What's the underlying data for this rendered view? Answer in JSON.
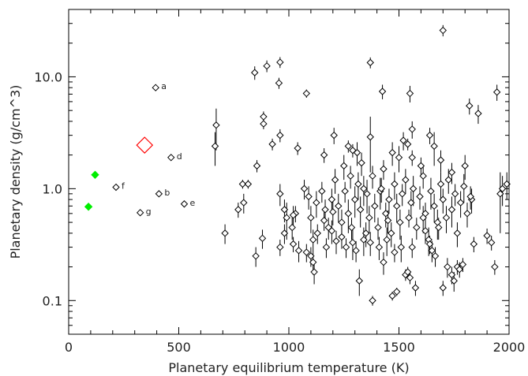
{
  "chart_data": {
    "type": "scatter",
    "xlabel": "Planetary equilibrium temperature (K)",
    "ylabel": "Planetary density (g/cm^3)",
    "xlim": [
      0,
      2000
    ],
    "ylim": [
      0.05,
      40
    ],
    "y_scale": "log",
    "x_ticks": [
      0,
      500,
      1000,
      1500,
      2000
    ],
    "x_tick_labels": [
      "0",
      "500",
      "1000",
      "1500",
      "2000"
    ],
    "y_ticks": [
      0.1,
      1.0,
      10.0
    ],
    "y_tick_labels": [
      "0.1",
      "1.0",
      "10.0"
    ],
    "grid": false,
    "legend": "none",
    "colors": {
      "known": "#000000",
      "highlight": "#ff0000",
      "green": "#00ee00"
    },
    "series": [
      {
        "marker": "open-diamond",
        "color": "#000000",
        "points": [
          [
            1700,
            26,
            3
          ],
          [
            960,
            13.5,
            1.5
          ],
          [
            900,
            12.5,
            1.5
          ],
          [
            955,
            8.8,
            1
          ],
          [
            845,
            10.9,
            1.5
          ],
          [
            1370,
            13.4,
            1.5
          ],
          [
            1945,
            7.3,
            1.2
          ],
          [
            1550,
            7.1,
            1.2
          ],
          [
            1425,
            7.4,
            1.1
          ],
          [
            1080,
            7.1,
            0.6
          ],
          [
            1820,
            5.5,
            0.9
          ],
          [
            1860,
            4.7,
            0.9
          ],
          [
            885,
            4.4,
            0.5
          ],
          [
            885,
            3.8,
            0.4
          ],
          [
            960,
            3.0,
            0.4
          ],
          [
            1040,
            2.3,
            0.3
          ],
          [
            925,
            2.5,
            0.3
          ],
          [
            670,
            3.7,
            1.5
          ],
          [
            665,
            2.4,
            0.8
          ],
          [
            855,
            1.6,
            0.2
          ],
          [
            1160,
            2.0,
            0.3
          ],
          [
            1290,
            2.2,
            0.3
          ],
          [
            1270,
            2.4,
            0.3
          ],
          [
            1205,
            3.0,
            0.5
          ],
          [
            1370,
            2.9,
            1.5
          ],
          [
            1560,
            3.4,
            0.6
          ],
          [
            1540,
            2.5,
            0.3
          ],
          [
            1520,
            2.7,
            0.5
          ],
          [
            1660,
            2.4,
            0.8
          ],
          [
            1640,
            3.0,
            0.5
          ],
          [
            1310,
            2.1,
            0.5
          ],
          [
            1470,
            2.1,
            0.5
          ],
          [
            1500,
            1.9,
            0.5
          ],
          [
            1560,
            1.9,
            0.3
          ],
          [
            1600,
            1.6,
            0.3
          ],
          [
            1690,
            1.8,
            0.4
          ],
          [
            1740,
            1.4,
            0.3
          ],
          [
            1800,
            1.6,
            0.4
          ],
          [
            1830,
            0.8,
            0.2
          ],
          [
            1970,
            1.0,
            0.3
          ],
          [
            1990,
            1.1,
            0.3
          ],
          [
            1960,
            0.9,
            0.5
          ],
          [
            790,
            1.1,
            0.1
          ],
          [
            815,
            1.1,
            0.1
          ],
          [
            795,
            0.75,
            0.15
          ],
          [
            770,
            0.65,
            0.1
          ],
          [
            960,
            0.9,
            0.2
          ],
          [
            980,
            0.65,
            0.15
          ],
          [
            990,
            0.55,
            0.2
          ],
          [
            1015,
            0.45,
            0.1
          ],
          [
            1030,
            0.6,
            0.1
          ],
          [
            1070,
            1.0,
            0.2
          ],
          [
            1090,
            0.85,
            0.2
          ],
          [
            1100,
            0.55,
            0.15
          ],
          [
            1110,
            0.35,
            0.08
          ],
          [
            1125,
            0.75,
            0.2
          ],
          [
            1150,
            0.95,
            0.2
          ],
          [
            1165,
            0.65,
            0.15
          ],
          [
            1180,
            0.45,
            0.1
          ],
          [
            1195,
            0.8,
            0.2
          ],
          [
            1210,
            1.2,
            0.3
          ],
          [
            1225,
            0.7,
            0.2
          ],
          [
            1240,
            0.5,
            0.15
          ],
          [
            1255,
            0.95,
            0.2
          ],
          [
            1270,
            0.6,
            0.2
          ],
          [
            1285,
            0.45,
            0.1
          ],
          [
            1300,
            0.8,
            0.25
          ],
          [
            1315,
            1.1,
            0.3
          ],
          [
            1325,
            0.65,
            0.2
          ],
          [
            1340,
            0.35,
            0.1
          ],
          [
            1355,
            0.9,
            0.3
          ],
          [
            1365,
            0.55,
            0.15
          ],
          [
            1380,
            1.3,
            0.3
          ],
          [
            1390,
            0.7,
            0.2
          ],
          [
            1405,
            0.45,
            0.1
          ],
          [
            1415,
            0.95,
            0.3
          ],
          [
            1430,
            1.5,
            0.3
          ],
          [
            1440,
            0.6,
            0.15
          ],
          [
            1455,
            0.8,
            0.2
          ],
          [
            1465,
            0.4,
            0.1
          ],
          [
            1480,
            1.1,
            0.3
          ],
          [
            1490,
            0.7,
            0.2
          ],
          [
            1505,
            0.5,
            0.15
          ],
          [
            1515,
            0.9,
            0.2
          ],
          [
            1530,
            1.2,
            0.3
          ],
          [
            1545,
            0.55,
            0.1
          ],
          [
            1555,
            0.75,
            0.2
          ],
          [
            1565,
            1.0,
            0.3
          ],
          [
            1580,
            0.45,
            0.1
          ],
          [
            1595,
            0.85,
            0.2
          ],
          [
            1610,
            1.3,
            0.3
          ],
          [
            1620,
            0.6,
            0.15
          ],
          [
            1635,
            0.35,
            0.1
          ],
          [
            1645,
            0.95,
            0.3
          ],
          [
            1660,
            0.7,
            0.2
          ],
          [
            1675,
            0.5,
            0.15
          ],
          [
            1690,
            1.1,
            0.3
          ],
          [
            1700,
            0.8,
            0.2
          ],
          [
            1715,
            0.55,
            0.15
          ],
          [
            1725,
            1.2,
            0.3
          ],
          [
            1740,
            0.65,
            0.2
          ],
          [
            1755,
            0.9,
            0.2
          ],
          [
            1765,
            0.4,
            0.1
          ],
          [
            1780,
            0.75,
            0.2
          ],
          [
            1795,
            1.05,
            0.3
          ],
          [
            1810,
            0.6,
            0.15
          ],
          [
            1825,
            0.85,
            0.2
          ],
          [
            1840,
            0.32,
            0.05
          ],
          [
            1900,
            0.38,
            0.06
          ],
          [
            1920,
            0.33,
            0.05
          ],
          [
            1935,
            0.2,
            0.03
          ],
          [
            710,
            0.4,
            0.08
          ],
          [
            850,
            0.25,
            0.05
          ],
          [
            880,
            0.36,
            0.07
          ],
          [
            960,
            0.3,
            0.05
          ],
          [
            980,
            0.4,
            0.08
          ],
          [
            1020,
            0.32,
            0.05
          ],
          [
            1045,
            0.28,
            0.06
          ],
          [
            1080,
            0.27,
            0.05
          ],
          [
            1100,
            0.25,
            0.05
          ],
          [
            1110,
            0.22,
            0.05
          ],
          [
            1115,
            0.18,
            0.04
          ],
          [
            1130,
            0.4,
            0.08
          ],
          [
            1170,
            0.3,
            0.06
          ],
          [
            1195,
            0.42,
            0.1
          ],
          [
            1215,
            0.34,
            0.08
          ],
          [
            1240,
            0.37,
            0.08
          ],
          [
            1260,
            0.3,
            0.06
          ],
          [
            1290,
            0.33,
            0.1
          ],
          [
            1305,
            0.28,
            0.06
          ],
          [
            1320,
            0.15,
            0.04
          ],
          [
            1350,
            0.4,
            0.1
          ],
          [
            1370,
            0.33,
            0.08
          ],
          [
            1410,
            0.3,
            0.07
          ],
          [
            1430,
            0.22,
            0.05
          ],
          [
            1445,
            0.35,
            0.1
          ],
          [
            1470,
            0.11,
            0.01
          ],
          [
            1480,
            0.27,
            0.05
          ],
          [
            1490,
            0.12,
            0.01
          ],
          [
            1510,
            0.3,
            0.08
          ],
          [
            1530,
            0.17,
            0.02
          ],
          [
            1540,
            0.18,
            0.02
          ],
          [
            1550,
            0.16,
            0.02
          ],
          [
            1560,
            0.3,
            0.06
          ],
          [
            1575,
            0.13,
            0.02
          ],
          [
            1620,
            0.42,
            0.1
          ],
          [
            1640,
            0.32,
            0.06
          ],
          [
            1650,
            0.28,
            0.06
          ],
          [
            1665,
            0.25,
            0.05
          ],
          [
            1680,
            0.45,
            0.1
          ],
          [
            1700,
            0.13,
            0.02
          ],
          [
            1720,
            0.2,
            0.04
          ],
          [
            1740,
            0.17,
            0.03
          ],
          [
            1750,
            0.15,
            0.03
          ],
          [
            1765,
            0.2,
            0.03
          ],
          [
            1775,
            0.19,
            0.03
          ],
          [
            1790,
            0.21,
            0.03
          ],
          [
            1380,
            0.1,
            0.01
          ],
          [
            1610,
            0.55,
            0.15
          ],
          [
            1200,
            0.62,
            0.15
          ],
          [
            1160,
            0.52,
            0.1
          ],
          [
            1450,
            0.52,
            0.12
          ],
          [
            1340,
            1.0,
            0.3
          ],
          [
            1280,
            1.3,
            0.3
          ],
          [
            1020,
            0.58,
            0.12
          ],
          [
            1250,
            1.6,
            0.4
          ],
          [
            1330,
            1.7,
            0.4
          ],
          [
            1420,
            1.0,
            0.25
          ]
        ]
      },
      {
        "marker": "labeled-diamond",
        "color": "#000000",
        "points": [
          {
            "x": 395,
            "y": 8.0,
            "label": "a"
          },
          {
            "x": 410,
            "y": 0.9,
            "label": "b"
          },
          {
            "x": 465,
            "y": 1.9,
            "label": "d"
          },
          {
            "x": 525,
            "y": 0.73,
            "label": "e"
          },
          {
            "x": 215,
            "y": 1.03,
            "label": "f"
          },
          {
            "x": 325,
            "y": 0.61,
            "label": "g"
          }
        ]
      },
      {
        "marker": "large-open-diamond",
        "color": "#ff0000",
        "points": [
          [
            345,
            2.45
          ]
        ]
      },
      {
        "marker": "filled-diamond",
        "color": "#00ee00",
        "points": [
          [
            120,
            1.33
          ],
          [
            90,
            0.69
          ]
        ]
      }
    ]
  }
}
